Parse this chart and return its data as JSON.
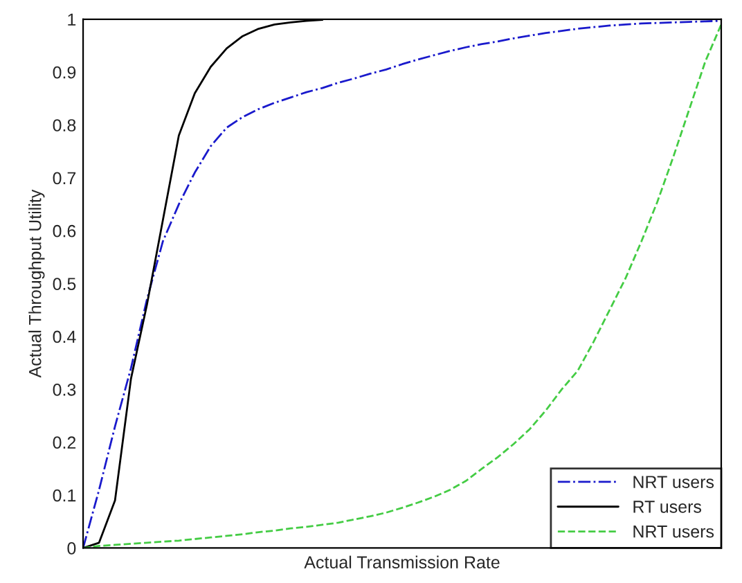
{
  "chart_data": {
    "type": "line",
    "xlabel": "Actual Transmission Rate",
    "ylabel": "Actual Throughput Utility",
    "categories": [
      null,
      null,
      null,
      null,
      null,
      null,
      null,
      null,
      null,
      null,
      null,
      null,
      null,
      null,
      null,
      null,
      null,
      null,
      null,
      null,
      null,
      null,
      null,
      null,
      null,
      null,
      null,
      null,
      null,
      null,
      null,
      null,
      null,
      null,
      null,
      null,
      null,
      null,
      null,
      null,
      null
    ],
    "series": [
      {
        "name": "NRT users",
        "color": "#1a1acc",
        "line_style": "dashdot",
        "values": [
          0,
          0.11,
          0.23,
          0.34,
          0.47,
          0.58,
          0.65,
          0.71,
          0.76,
          0.795,
          0.815,
          0.83,
          0.842,
          0.852,
          0.862,
          0.87,
          0.88,
          0.888,
          0.897,
          0.905,
          0.915,
          0.924,
          0.932,
          0.94,
          0.947,
          0.953,
          0.958,
          0.964,
          0.969,
          0.974,
          0.978,
          0.982,
          0.985,
          0.988,
          0.99,
          0.992,
          0.993,
          0.994,
          0.995,
          0.996,
          0.997
        ]
      },
      {
        "name": "RT users",
        "color": "#000000",
        "line_style": "solid",
        "values": [
          0,
          0.01,
          0.09,
          0.32,
          0.46,
          0.62,
          0.78,
          0.86,
          0.91,
          0.945,
          0.968,
          0.982,
          0.99,
          0.994,
          0.997,
          0.999,
          null,
          null,
          null,
          null,
          null,
          null,
          null,
          null,
          null,
          null,
          null,
          null,
          null,
          null,
          null,
          null,
          null,
          null,
          null,
          null,
          null,
          null,
          null,
          null,
          null
        ]
      },
      {
        "name": "NRT users",
        "color": "#44cc44",
        "line_style": "dashed",
        "values": [
          0,
          0.004,
          0.006,
          0.008,
          0.01,
          0.012,
          0.014,
          0.017,
          0.02,
          0.023,
          0.026,
          0.03,
          0.033,
          0.037,
          0.04,
          0.044,
          0.048,
          0.054,
          0.06,
          0.067,
          0.076,
          0.086,
          0.097,
          0.11,
          0.127,
          0.15,
          0.172,
          0.197,
          0.225,
          0.26,
          0.3,
          0.335,
          0.39,
          0.45,
          0.51,
          0.58,
          0.655,
          0.74,
          0.83,
          0.92,
          0.99
        ]
      }
    ],
    "ylim": [
      0,
      1
    ],
    "yticks": [
      0,
      0.1,
      0.2,
      0.3,
      0.4,
      0.5,
      0.6,
      0.7,
      0.8,
      0.9,
      1
    ],
    "grid": false,
    "legend": "bottom right",
    "tick_labels": "y"
  }
}
